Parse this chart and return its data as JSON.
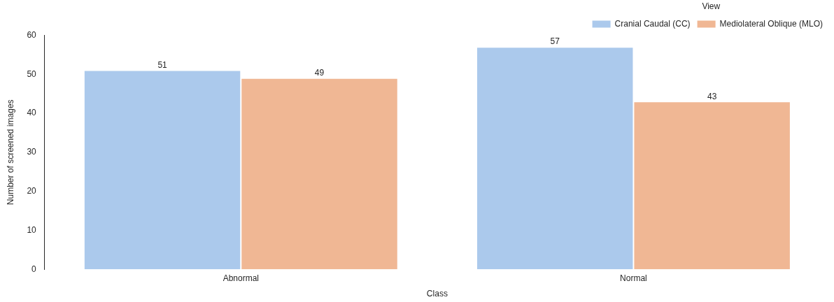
{
  "chart_data": {
    "type": "bar",
    "xlabel": "Class",
    "ylabel": "Number of screened images",
    "legend_title": "View",
    "categories": [
      "Abnormal",
      "Normal"
    ],
    "series": [
      {
        "name": "Cranial Caudal (CC)",
        "color": "#abc9ec",
        "values": [
          51,
          57
        ]
      },
      {
        "name": "Mediolateral Oblique (MLO)",
        "color": "#f0b794",
        "values": [
          49,
          43
        ]
      }
    ],
    "ylim": [
      0,
      60
    ],
    "yticks": [
      0,
      10,
      20,
      30,
      40,
      50,
      60
    ],
    "grid": false,
    "legend": "top right",
    "data_labels": true
  }
}
